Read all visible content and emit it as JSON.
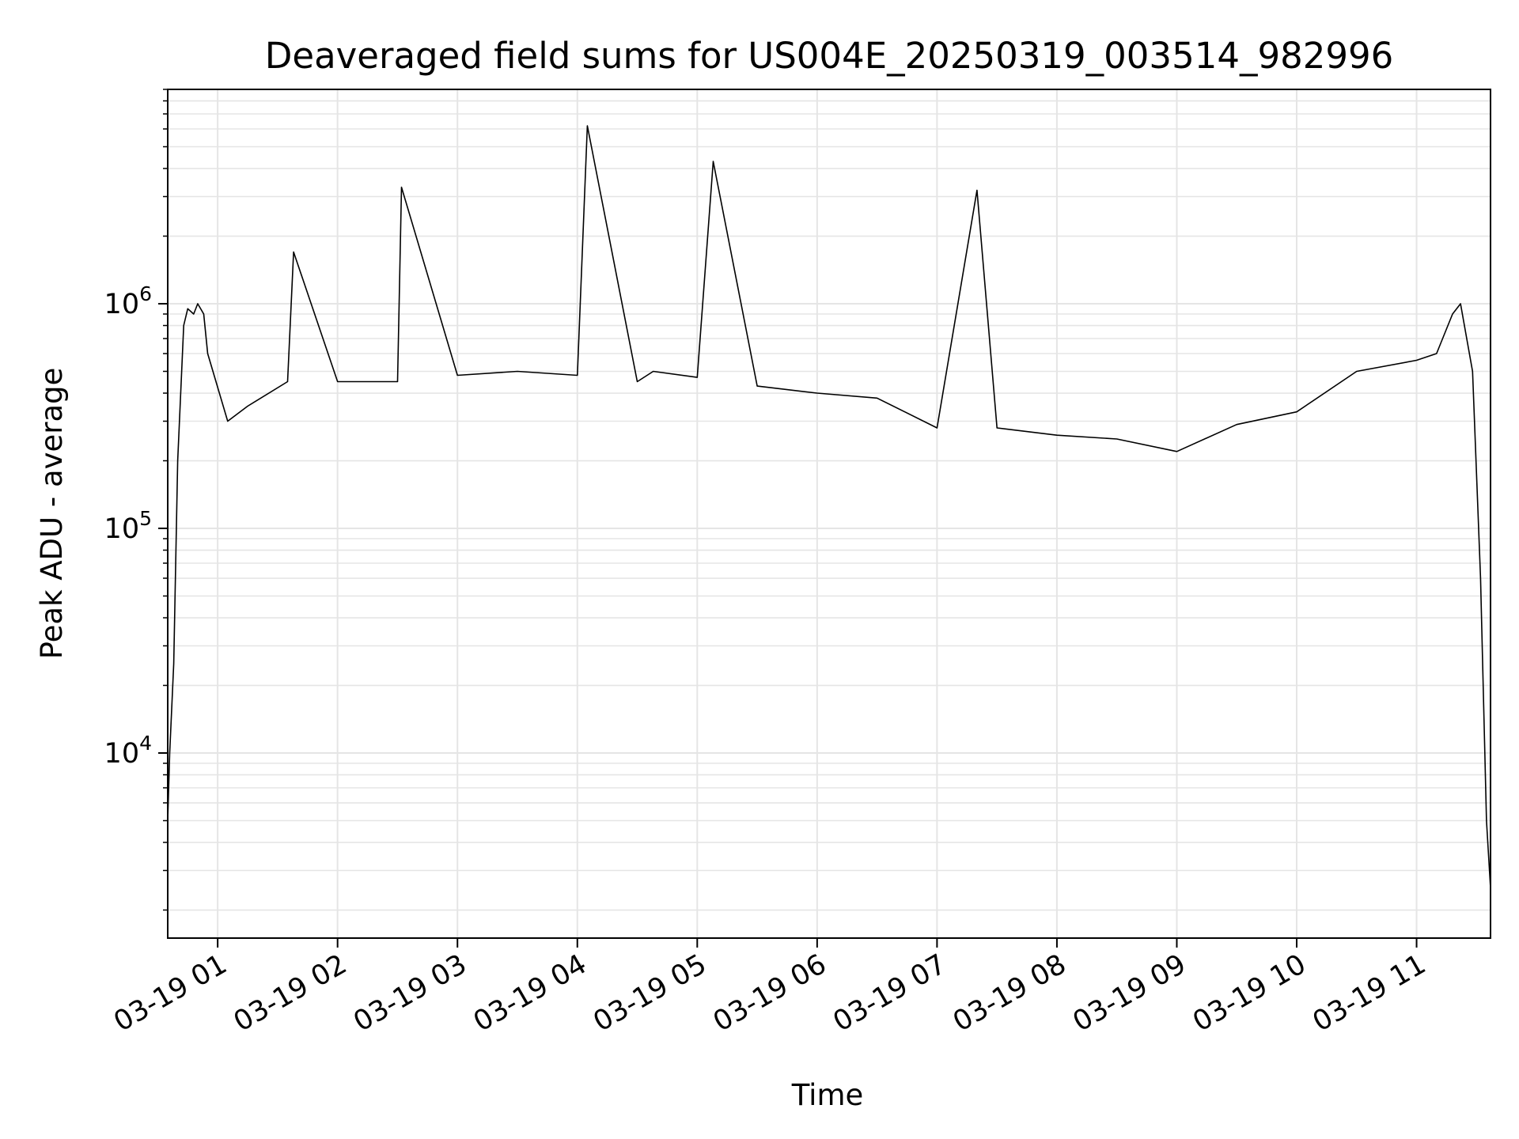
{
  "chart_data": {
    "type": "line",
    "title": "Deaveraged field sums for US004E_20250319_003514_982996",
    "xlabel": "Time",
    "ylabel": "Peak ADU - average",
    "y_scale": "log",
    "ylim": [
      1500,
      9000000
    ],
    "xlim": [
      "2025-03-19 00:35",
      "2025-03-19 11:37"
    ],
    "grid": true,
    "line_color": "#000000",
    "grid_color": "#e5e5e5",
    "x_ticks": [
      {
        "value": "2025-03-19 01:00",
        "label": "03-19 01"
      },
      {
        "value": "2025-03-19 02:00",
        "label": "03-19 02"
      },
      {
        "value": "2025-03-19 03:00",
        "label": "03-19 03"
      },
      {
        "value": "2025-03-19 04:00",
        "label": "03-19 04"
      },
      {
        "value": "2025-03-19 05:00",
        "label": "03-19 05"
      },
      {
        "value": "2025-03-19 06:00",
        "label": "03-19 06"
      },
      {
        "value": "2025-03-19 07:00",
        "label": "03-19 07"
      },
      {
        "value": "2025-03-19 08:00",
        "label": "03-19 08"
      },
      {
        "value": "2025-03-19 09:00",
        "label": "03-19 09"
      },
      {
        "value": "2025-03-19 10:00",
        "label": "03-19 10"
      },
      {
        "value": "2025-03-19 11:00",
        "label": "03-19 11"
      }
    ],
    "y_ticks": [
      {
        "value": 10000,
        "base": "10",
        "exp": "4"
      },
      {
        "value": 100000,
        "base": "10",
        "exp": "5"
      },
      {
        "value": 1000000,
        "base": "10",
        "exp": "6"
      }
    ],
    "series": [
      {
        "x": [
          "2025-03-19 00:35",
          "2025-03-19 00:36",
          "2025-03-19 00:38",
          "2025-03-19 00:40",
          "2025-03-19 00:43",
          "2025-03-19 00:45",
          "2025-03-19 00:48",
          "2025-03-19 00:50",
          "2025-03-19 00:53",
          "2025-03-19 00:55",
          "2025-03-19 01:05",
          "2025-03-19 01:15",
          "2025-03-19 01:35",
          "2025-03-19 01:38",
          "2025-03-19 02:00",
          "2025-03-19 02:30",
          "2025-03-19 02:32",
          "2025-03-19 03:00",
          "2025-03-19 03:30",
          "2025-03-19 04:00",
          "2025-03-19 04:05",
          "2025-03-19 04:30",
          "2025-03-19 04:38",
          "2025-03-19 05:00",
          "2025-03-19 05:08",
          "2025-03-19 05:30",
          "2025-03-19 06:00",
          "2025-03-19 06:30",
          "2025-03-19 07:00",
          "2025-03-19 07:20",
          "2025-03-19 07:30",
          "2025-03-19 08:00",
          "2025-03-19 08:30",
          "2025-03-19 09:00",
          "2025-03-19 09:30",
          "2025-03-19 10:00",
          "2025-03-19 10:30",
          "2025-03-19 11:00",
          "2025-03-19 11:10",
          "2025-03-19 11:18",
          "2025-03-19 11:22",
          "2025-03-19 11:28",
          "2025-03-19 11:32",
          "2025-03-19 11:35",
          "2025-03-19 11:37"
        ],
        "y": [
          5000,
          10000,
          25000,
          200000,
          800000,
          950000,
          900000,
          1000000,
          900000,
          600000,
          300000,
          350000,
          450000,
          1700000,
          450000,
          450000,
          3300000,
          480000,
          500000,
          480000,
          6200000,
          450000,
          500000,
          470000,
          4300000,
          430000,
          400000,
          380000,
          280000,
          3200000,
          280000,
          260000,
          250000,
          220000,
          290000,
          330000,
          500000,
          560000,
          600000,
          900000,
          1000000,
          500000,
          60000,
          5000,
          2500
        ]
      }
    ]
  }
}
